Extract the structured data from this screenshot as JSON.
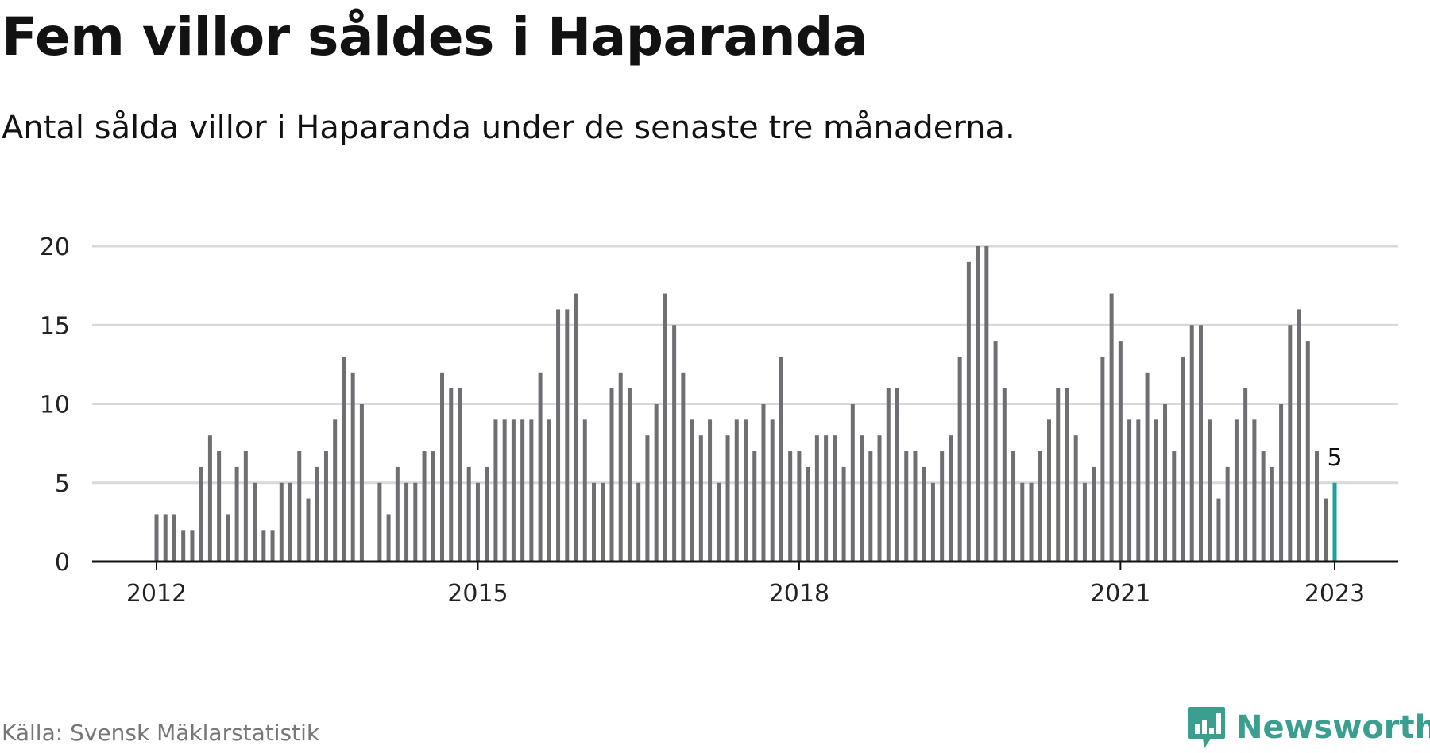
{
  "title": "Fem villor såldes i Haparanda",
  "subtitle": "Antal sålda villor i Haparanda under de senaste tre månaderna.",
  "source": "Källa: Svensk Mäklarstatistik",
  "brand": {
    "name": "Newsworthy",
    "color": "#3a9f8f",
    "icon": "newsworthy-logo-icon"
  },
  "colors": {
    "bar": "#6e6e73",
    "highlight": "#1aa39a",
    "grid": "#d9d9d9",
    "axis": "#111111"
  },
  "chart_data": {
    "type": "bar",
    "title": "Fem villor såldes i Haparanda",
    "xlabel": "",
    "ylabel": "",
    "ylim": [
      0,
      20
    ],
    "y_ticks": [
      0,
      5,
      10,
      15,
      20
    ],
    "x_ticks": [
      "2012",
      "2015",
      "2018",
      "2021",
      "2023"
    ],
    "start": "2012-01",
    "end": "2023-01",
    "frequency": "monthly, rolling 3-month count",
    "values": [
      3,
      3,
      3,
      2,
      2,
      6,
      8,
      7,
      3,
      6,
      7,
      5,
      2,
      2,
      5,
      5,
      7,
      4,
      6,
      7,
      9,
      13,
      12,
      10,
      0,
      5,
      3,
      6,
      5,
      5,
      7,
      7,
      12,
      11,
      11,
      6,
      5,
      6,
      9,
      9,
      9,
      9,
      9,
      12,
      9,
      16,
      16,
      17,
      9,
      5,
      5,
      11,
      12,
      11,
      5,
      8,
      10,
      17,
      15,
      12,
      9,
      8,
      9,
      5,
      8,
      9,
      9,
      7,
      10,
      9,
      13,
      7,
      7,
      6,
      8,
      8,
      8,
      6,
      10,
      8,
      7,
      8,
      11,
      11,
      7,
      7,
      6,
      5,
      7,
      8,
      13,
      19,
      20,
      20,
      14,
      11,
      7,
      5,
      5,
      7,
      9,
      11,
      11,
      8,
      5,
      6,
      13,
      17,
      14,
      9,
      9,
      12,
      9,
      10,
      7,
      13,
      15,
      15,
      9,
      4,
      6,
      9,
      11,
      9,
      7,
      6,
      10,
      15,
      16,
      14,
      7,
      4,
      5
    ],
    "highlight": {
      "index": 132,
      "label": "5"
    }
  }
}
